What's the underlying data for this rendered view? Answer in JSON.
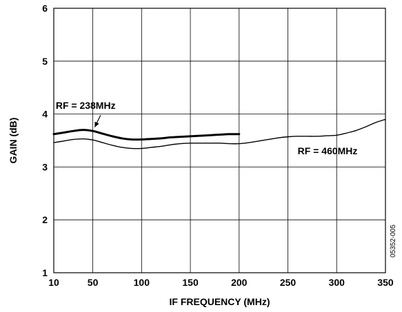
{
  "chart_data": {
    "type": "line",
    "title": "",
    "xlabel": "IF FREQUENCY (MHz)",
    "ylabel": "GAIN (dB)",
    "xlim": [
      10,
      350
    ],
    "ylim": [
      1,
      6
    ],
    "x_ticks": [
      10,
      50,
      100,
      150,
      200,
      250,
      300,
      350
    ],
    "y_ticks": [
      1,
      2,
      3,
      4,
      5,
      6
    ],
    "grid": true,
    "legend": "none",
    "series": [
      {
        "name": "RF = 238MHz",
        "color": "#000000",
        "style": "thick",
        "x": [
          10,
          20,
          30,
          40,
          50,
          60,
          70,
          80,
          90,
          100,
          110,
          120,
          130,
          140,
          150,
          160,
          170,
          180,
          190,
          200
        ],
        "y": [
          3.62,
          3.65,
          3.68,
          3.7,
          3.68,
          3.63,
          3.58,
          3.54,
          3.52,
          3.52,
          3.53,
          3.54,
          3.56,
          3.57,
          3.58,
          3.59,
          3.6,
          3.61,
          3.62,
          3.62
        ]
      },
      {
        "name": "RF = 460MHz",
        "color": "#000000",
        "style": "thin",
        "x": [
          10,
          20,
          30,
          40,
          50,
          60,
          70,
          80,
          90,
          100,
          110,
          120,
          130,
          140,
          150,
          160,
          170,
          180,
          190,
          200,
          210,
          220,
          230,
          240,
          250,
          260,
          270,
          280,
          290,
          300,
          310,
          320,
          330,
          340,
          350
        ],
        "y": [
          3.46,
          3.49,
          3.52,
          3.53,
          3.51,
          3.46,
          3.41,
          3.37,
          3.35,
          3.35,
          3.37,
          3.39,
          3.42,
          3.44,
          3.45,
          3.45,
          3.45,
          3.45,
          3.44,
          3.44,
          3.46,
          3.49,
          3.52,
          3.55,
          3.57,
          3.58,
          3.58,
          3.58,
          3.59,
          3.6,
          3.64,
          3.69,
          3.76,
          3.84,
          3.9
        ]
      }
    ],
    "annotations": [
      {
        "text": "RF = 238MHz",
        "x": 12,
        "y": 4.1,
        "arrow_to": [
          52,
          3.7
        ]
      },
      {
        "text": "RF = 460MHz",
        "x": 260,
        "y": 3.24
      }
    ],
    "figure_id": "05352-005"
  }
}
